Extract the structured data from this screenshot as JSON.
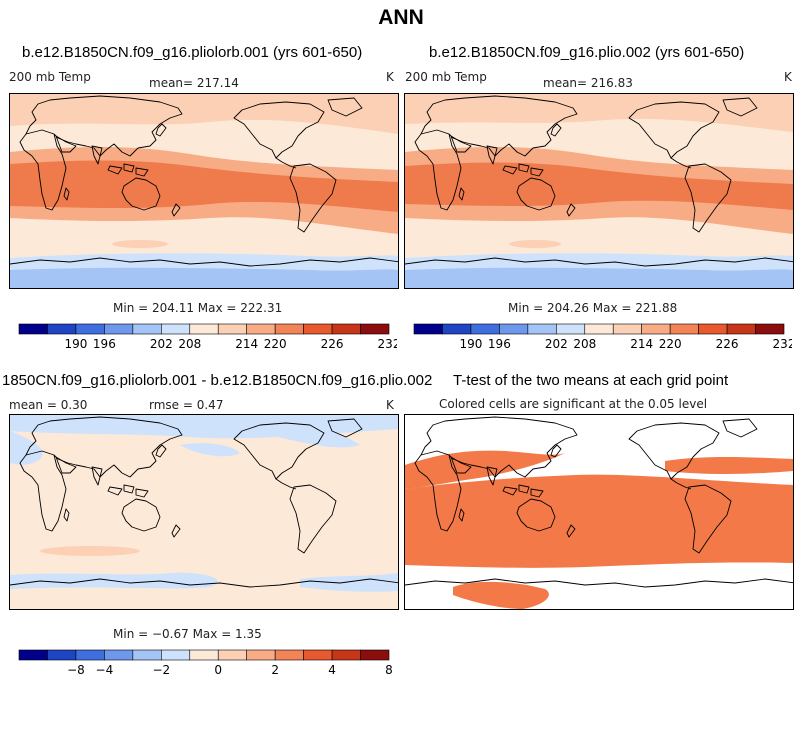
{
  "main_title": "ANN",
  "panels": [
    {
      "title": "b.e12.B1850CN.f09_g16.pliolorb.001 (yrs 601-650)",
      "variable": "200 mb Temp",
      "mean_label": "mean= 217.14",
      "units": "K",
      "minmax": "Min = 204.11 Max = 222.31"
    },
    {
      "title": "b.e12.B1850CN.f09_g16.plio.002 (yrs 601-650)",
      "variable": "200 mb Temp",
      "mean_label": "mean= 216.83",
      "units": "K",
      "minmax": "Min = 204.26 Max = 221.88"
    },
    {
      "title": "1850CN.f09_g16.pliolorb.001 - b.e12.B1850CN.f09_g16.plio.002",
      "mean_label": "mean =    0.30",
      "rmse_label": "rmse =    0.47",
      "units": "K",
      "minmax": "Min = −0.67 Max =   1.35"
    },
    {
      "title": "T-test of the two means at each grid point",
      "subtitle": "Colored cells are significant at the 0.05 level"
    }
  ],
  "colorbars": [
    {
      "colors": [
        "#00008b",
        "#1f45c4",
        "#3f6fde",
        "#6e98ec",
        "#a4c4f6",
        "#cfe2fb",
        "#fde9d8",
        "#fbd0b4",
        "#f7ac85",
        "#f28458",
        "#e8592f",
        "#c8361a",
        "#8b0d0d"
      ],
      "ticks": [
        "190",
        "196",
        "202",
        "208",
        "214",
        "220",
        "226",
        "232"
      ]
    },
    {
      "colors": [
        "#00008b",
        "#1f45c4",
        "#3f6fde",
        "#6e98ec",
        "#a4c4f6",
        "#cfe2fb",
        "#fde9d8",
        "#fbd0b4",
        "#f7ac85",
        "#f28458",
        "#e8592f",
        "#c8361a",
        "#8b0d0d"
      ],
      "ticks": [
        "190",
        "196",
        "202",
        "208",
        "214",
        "220",
        "226",
        "232"
      ]
    },
    {
      "colors": [
        "#00008b",
        "#1f45c4",
        "#3f6fde",
        "#6e98ec",
        "#a4c4f6",
        "#cfe2fb",
        "#fde9d8",
        "#fbd0b4",
        "#f7ac85",
        "#f28458",
        "#e8592f",
        "#c8361a",
        "#8b0d0d"
      ],
      "ticks": [
        "−8",
        "−4",
        "−2",
        "0",
        "2",
        "4",
        "8"
      ]
    }
  ],
  "chart_data": [
    {
      "type": "heatmap",
      "title": "b.e12.B1850CN.f09_g16.pliolorb.001 (yrs 601-650)",
      "variable": "200 mb Temp",
      "units": "K",
      "mean": 217.14,
      "min": 204.11,
      "max": 222.31,
      "colorbar_ticks": [
        190,
        196,
        202,
        208,
        214,
        220,
        226,
        232
      ]
    },
    {
      "type": "heatmap",
      "title": "b.e12.B1850CN.f09_g16.plio.002 (yrs 601-650)",
      "variable": "200 mb Temp",
      "units": "K",
      "mean": 216.83,
      "min": 204.26,
      "max": 221.88,
      "colorbar_ticks": [
        190,
        196,
        202,
        208,
        214,
        220,
        226,
        232
      ]
    },
    {
      "type": "heatmap",
      "title": "1850CN.f09_g16.pliolorb.001 - b.e12.B1850CN.f09_g16.plio.002",
      "units": "K",
      "mean": 0.3,
      "rmse": 0.47,
      "min": -0.67,
      "max": 1.35,
      "colorbar_ticks": [
        -8,
        -4,
        -2,
        0,
        2,
        4,
        8
      ]
    },
    {
      "type": "heatmap",
      "title": "T-test of the two means at each grid point",
      "subtitle": "Colored cells are significant at the 0.05 level",
      "significance_level": 0.05,
      "significant_color": "#f37a48"
    }
  ]
}
